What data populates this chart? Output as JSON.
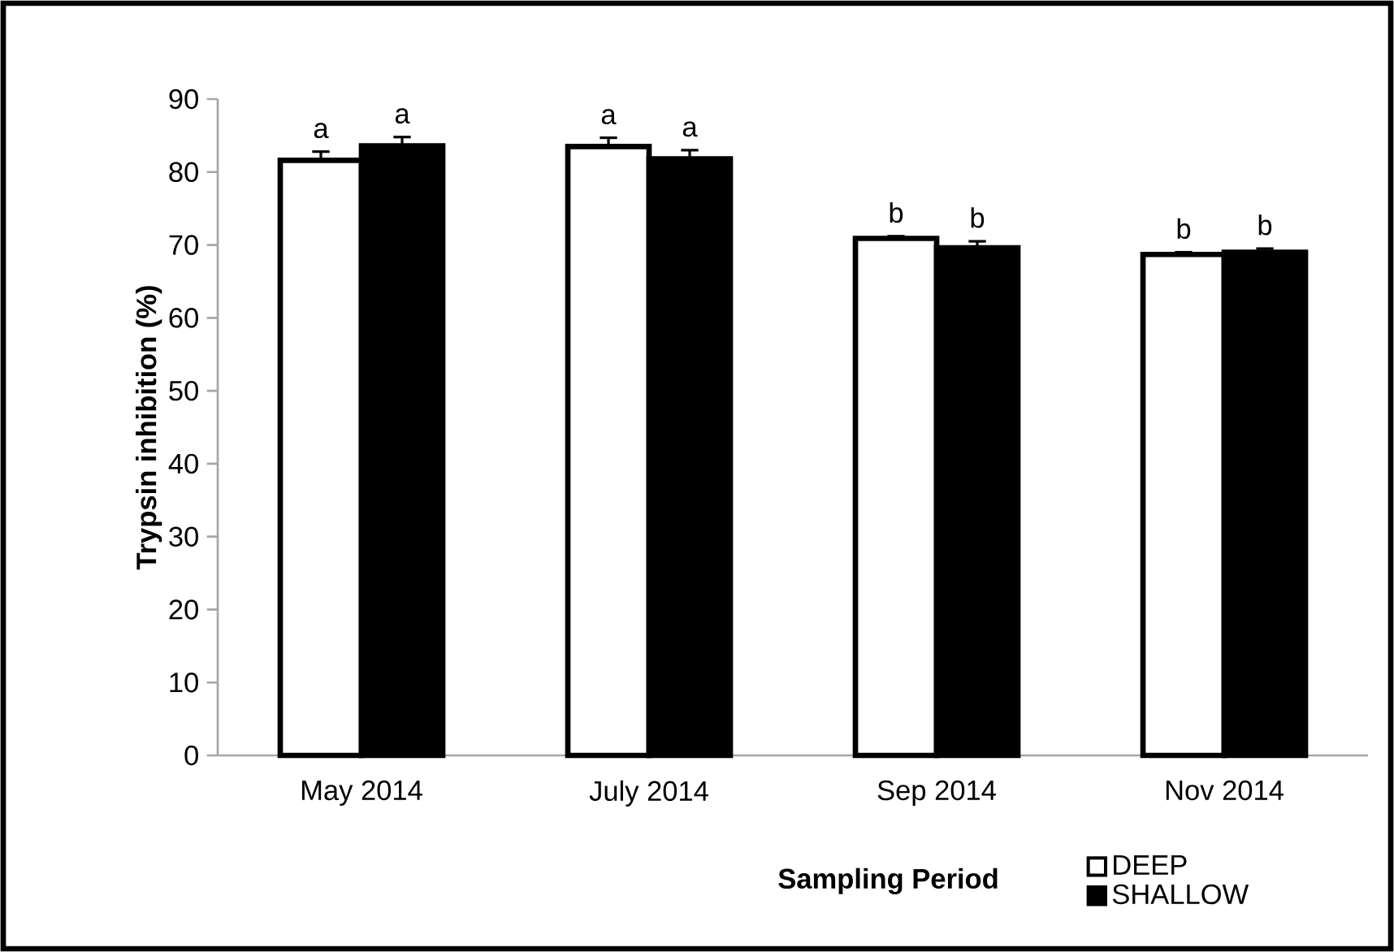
{
  "chart_data": {
    "type": "bar",
    "categories": [
      "May 2014",
      "July 2014",
      "Sep 2014",
      "Nov 2014"
    ],
    "xlabel": "Sampling Period",
    "ylabel": "Trypsin inhibition (%)",
    "ylim": [
      0,
      90
    ],
    "yticks": [
      0,
      10,
      20,
      30,
      40,
      50,
      60,
      70,
      80,
      90
    ],
    "legend": "bottom right",
    "grid": false,
    "series": [
      {
        "name": "DEEP",
        "color": "#ffffff",
        "values": [
          81.6,
          83.5,
          70.9,
          68.7
        ],
        "errors": [
          1.2,
          1.2,
          0.3,
          0.3
        ],
        "value_labels": [
          "a",
          "a",
          "b",
          "b"
        ]
      },
      {
        "name": "SHALLOW",
        "color": "#000000",
        "values": [
          83.6,
          81.8,
          69.6,
          69.0
        ],
        "errors": [
          1.2,
          1.2,
          0.9,
          0.5
        ],
        "value_labels": [
          "a",
          "a",
          "b",
          "b"
        ]
      }
    ]
  }
}
